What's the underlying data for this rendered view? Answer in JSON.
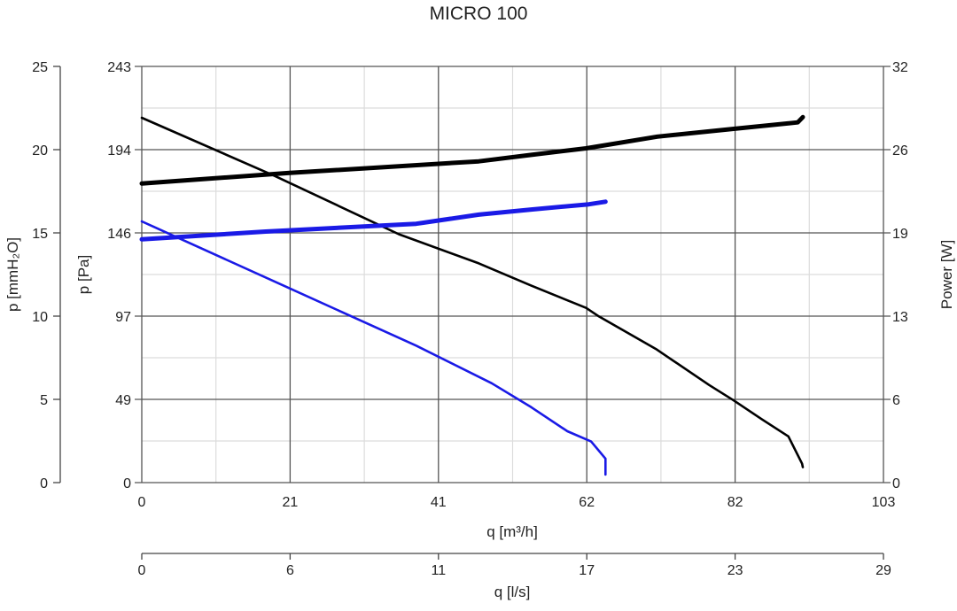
{
  "chart_data": {
    "type": "line",
    "title": "MICRO 100",
    "xlabel": "q [m³/h]",
    "xlim": [
      0,
      103
    ],
    "x_ticks": [
      "0",
      "21",
      "41",
      "62",
      "82",
      "103"
    ],
    "x2label": "q [l/s]",
    "x2lim": [
      0,
      29
    ],
    "x2_ticks": [
      "0",
      "6",
      "11",
      "17",
      "23",
      "29"
    ],
    "ylabel": "p [Pa]",
    "ylim": [
      0,
      243
    ],
    "y_ticks": [
      "0",
      "49",
      "97",
      "146",
      "194",
      "243"
    ],
    "y2label": "p [mmH₂O]",
    "y2lim": [
      0,
      25
    ],
    "y2_ticks": [
      "0",
      "5",
      "10",
      "15",
      "20",
      "25"
    ],
    "y3label": "Power [W]",
    "y3lim": [
      0,
      32
    ],
    "y3_ticks": [
      "0",
      "6",
      "13",
      "19",
      "26",
      "32"
    ],
    "grid": true,
    "series": [
      {
        "kind": "pressure",
        "axis": "Pa",
        "color": "#000000",
        "points": [
          [
            0,
            213
          ],
          [
            18.5,
            179
          ],
          [
            35.7,
            145
          ],
          [
            46.8,
            128
          ],
          [
            54.1,
            115
          ],
          [
            61.7,
            102
          ],
          [
            63.5,
            97
          ],
          [
            71.4,
            78
          ],
          [
            78.8,
            57
          ],
          [
            82.2,
            48
          ],
          [
            86.1,
            37
          ],
          [
            89.8,
            27
          ],
          [
            91.7,
            11
          ],
          [
            91.8,
            9
          ]
        ]
      },
      {
        "kind": "power",
        "axis": "W",
        "color": "#000000",
        "points": [
          [
            0,
            23.0
          ],
          [
            20.3,
            23.8
          ],
          [
            46.8,
            24.7
          ],
          [
            54.1,
            25.2
          ],
          [
            61.7,
            25.7
          ],
          [
            71.6,
            26.6
          ],
          [
            82.2,
            27.2
          ],
          [
            91.1,
            27.7
          ],
          [
            91.8,
            28.1
          ]
        ]
      },
      {
        "kind": "pressure",
        "axis": "Pa",
        "color": "#1a1ae6",
        "points": [
          [
            0,
            152.5
          ],
          [
            19.7,
            115
          ],
          [
            38.1,
            80
          ],
          [
            48.6,
            58
          ],
          [
            54.1,
            44
          ],
          [
            59.1,
            30
          ],
          [
            62.4,
            24
          ],
          [
            64.4,
            14
          ],
          [
            64.4,
            4.7
          ]
        ]
      },
      {
        "kind": "power",
        "axis": "W",
        "color": "#1a1ae6",
        "points": [
          [
            0,
            18.7
          ],
          [
            17.2,
            19.3
          ],
          [
            38.1,
            19.9
          ],
          [
            46.8,
            20.6
          ],
          [
            54.1,
            21.0
          ],
          [
            62.1,
            21.4
          ],
          [
            64.4,
            21.6
          ]
        ]
      }
    ]
  }
}
